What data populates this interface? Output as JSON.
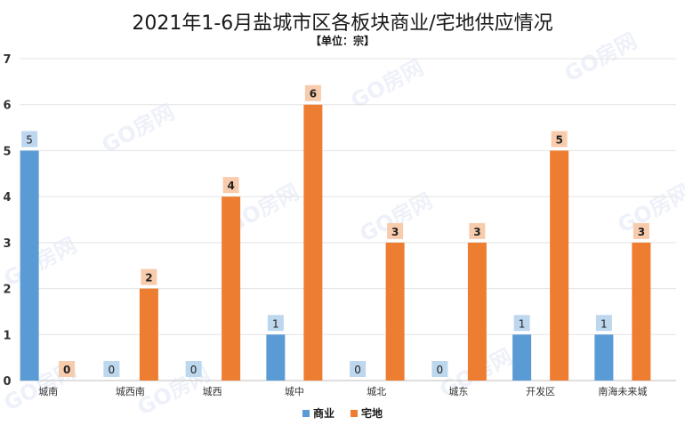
{
  "chart_data": {
    "type": "bar",
    "title": "2021年1-6月盐城市区各板块商业/宅地供应情况",
    "subtitle": "【单位：宗】",
    "categories": [
      "城南",
      "城西南",
      "城西",
      "城中",
      "城北",
      "城东",
      "开发区",
      "南海未来城"
    ],
    "series": [
      {
        "name": "商业",
        "color": "#5b9bd5",
        "label_bg": "#bdd7ee",
        "values": [
          5,
          0,
          0,
          1,
          0,
          0,
          1,
          1
        ]
      },
      {
        "name": "宅地",
        "color": "#ed7d31",
        "label_bg": "#f8cbad",
        "values": [
          0,
          2,
          4,
          6,
          3,
          3,
          5,
          3
        ]
      }
    ],
    "ylim": [
      0,
      7
    ],
    "yticks": [
      "0",
      "1",
      "2",
      "3",
      "4",
      "5",
      "6",
      "7"
    ],
    "grid": true,
    "legend_position": "bottom"
  },
  "watermark": "GO房网"
}
